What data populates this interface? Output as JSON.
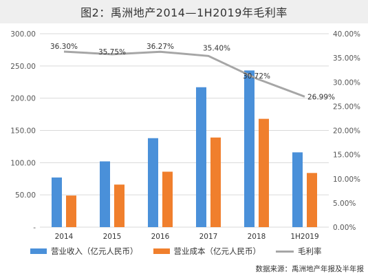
{
  "title": "图2：禹洲地产2014—1H2019年毛利率",
  "source": "数据来源：禹洲地产年报及半年报",
  "colors": {
    "revenue": "#4a90d9",
    "cost": "#f07f2d",
    "margin": "#a6a6a6"
  },
  "chart_data": {
    "type": "bar",
    "categories": [
      "2014",
      "2015",
      "2016",
      "2017",
      "2018",
      "1H2019"
    ],
    "series": [
      {
        "name": "营业收入（亿元人民币）",
        "type": "bar",
        "axis": "left",
        "values": [
          77,
          102,
          138,
          217,
          243,
          116
        ]
      },
      {
        "name": "营业成本（亿元人民币）",
        "type": "bar",
        "axis": "left",
        "values": [
          49,
          66,
          86,
          139,
          168,
          84
        ]
      },
      {
        "name": "毛利率",
        "type": "line",
        "axis": "right",
        "values": [
          36.3,
          35.75,
          36.27,
          35.4,
          30.72,
          26.99
        ],
        "labels": [
          "36.30%",
          "35.75%",
          "36.27%",
          "35.40%",
          "30.72%",
          "26.99%"
        ]
      }
    ],
    "ylim": [
      0,
      300
    ],
    "y2lim": [
      0,
      40
    ],
    "y_ticks": [
      "300.00",
      "250.00",
      "200.00",
      "150.00",
      "100.00",
      "50.00",
      "-"
    ],
    "y2_ticks": [
      "40.00%",
      "35.00%",
      "30.00%",
      "25.00%",
      "20.00%",
      "15.00%",
      "10.00%",
      "5.00%",
      "0.00%"
    ],
    "grid": true,
    "legend_position": "bottom"
  }
}
